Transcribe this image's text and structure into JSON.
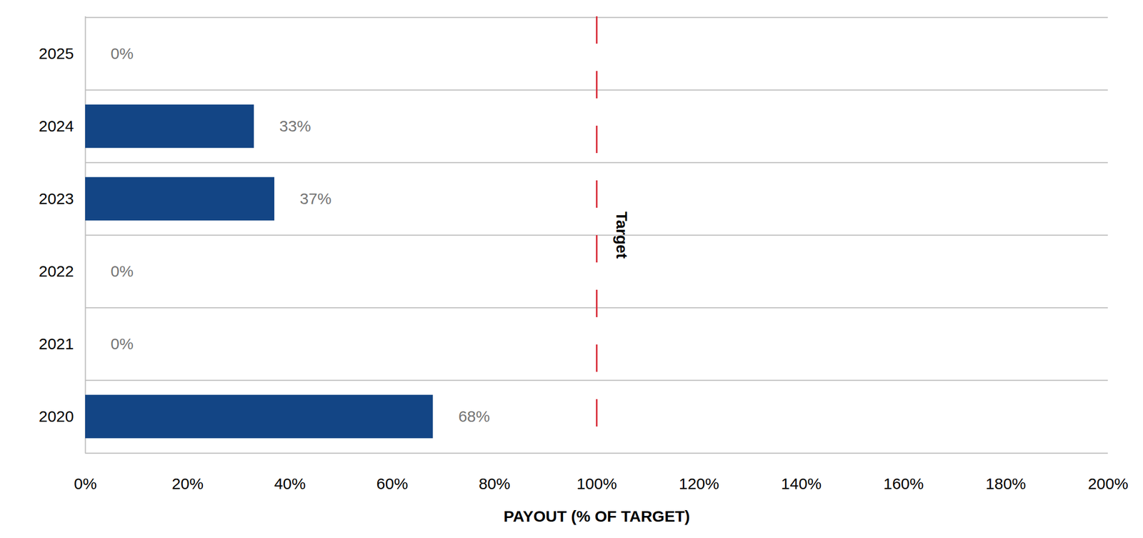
{
  "chart_data": {
    "type": "bar",
    "orientation": "horizontal",
    "categories": [
      "2025",
      "2024",
      "2023",
      "2022",
      "2021",
      "2020"
    ],
    "values": [
      0,
      33,
      37,
      0,
      0,
      68
    ],
    "value_labels": [
      "0%",
      "33%",
      "37%",
      "0%",
      "0%",
      "68%"
    ],
    "data_labels": true,
    "color": "#134585",
    "xlabel": "PAYOUT (% OF TARGET)",
    "xlim": [
      0,
      200
    ],
    "xticks": [
      {
        "value": 0,
        "label": "0%"
      },
      {
        "value": 20,
        "label": "20%"
      },
      {
        "value": 40,
        "label": "40%"
      },
      {
        "value": 60,
        "label": "60%"
      },
      {
        "value": 80,
        "label": "80%"
      },
      {
        "value": 100,
        "label": "100%"
      },
      {
        "value": 120,
        "label": "120%"
      },
      {
        "value": 140,
        "label": "140%"
      },
      {
        "value": 160,
        "label": "160%"
      },
      {
        "value": 180,
        "label": "180%"
      },
      {
        "value": 200,
        "label": "200%"
      }
    ],
    "target": {
      "value": 100,
      "label": "Target",
      "color": "#d9333f",
      "line_style": "dashed"
    }
  }
}
